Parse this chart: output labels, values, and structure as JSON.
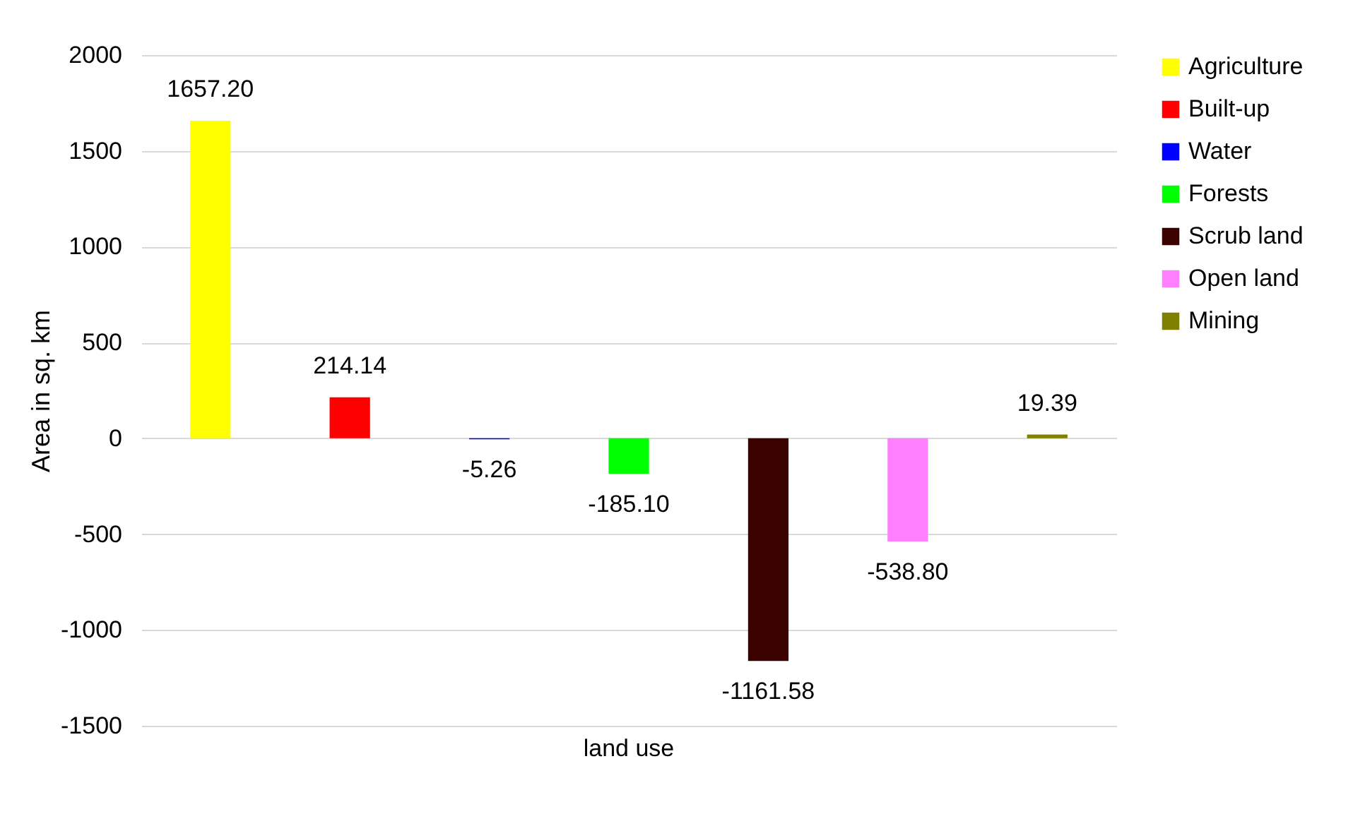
{
  "chart_data": {
    "type": "bar",
    "xlabel": null,
    "ylabel": "Area in sq. km",
    "categories": [
      "land use"
    ],
    "series": [
      {
        "name": "Agriculture",
        "color": "#ffff00",
        "values": [
          1657.2
        ],
        "value_labels": [
          "1657.20"
        ]
      },
      {
        "name": "Built-up",
        "color": "#ff0000",
        "values": [
          214.14
        ],
        "value_labels": [
          "214.14"
        ]
      },
      {
        "name": "Water",
        "color": "#0000ff",
        "values": [
          -5.26
        ],
        "value_labels": [
          "-5.26"
        ]
      },
      {
        "name": "Forests",
        "color": "#00ff00",
        "values": [
          -185.1
        ],
        "value_labels": [
          "-185.10"
        ]
      },
      {
        "name": "Scrub land",
        "color": "#3b0000",
        "values": [
          -1161.58
        ],
        "value_labels": [
          "-1161.58"
        ]
      },
      {
        "name": "Open land",
        "color": "#ff80ff",
        "values": [
          -538.8
        ],
        "value_labels": [
          "-538.80"
        ]
      },
      {
        "name": "Mining",
        "color": "#808000",
        "values": [
          19.39
        ],
        "value_labels": [
          "19.39"
        ]
      }
    ],
    "ylim": [
      -1500,
      2000
    ],
    "yticks": [
      -1500,
      -1000,
      -500,
      0,
      500,
      1000,
      1500,
      2000
    ],
    "grid": "y",
    "legend": "right"
  }
}
